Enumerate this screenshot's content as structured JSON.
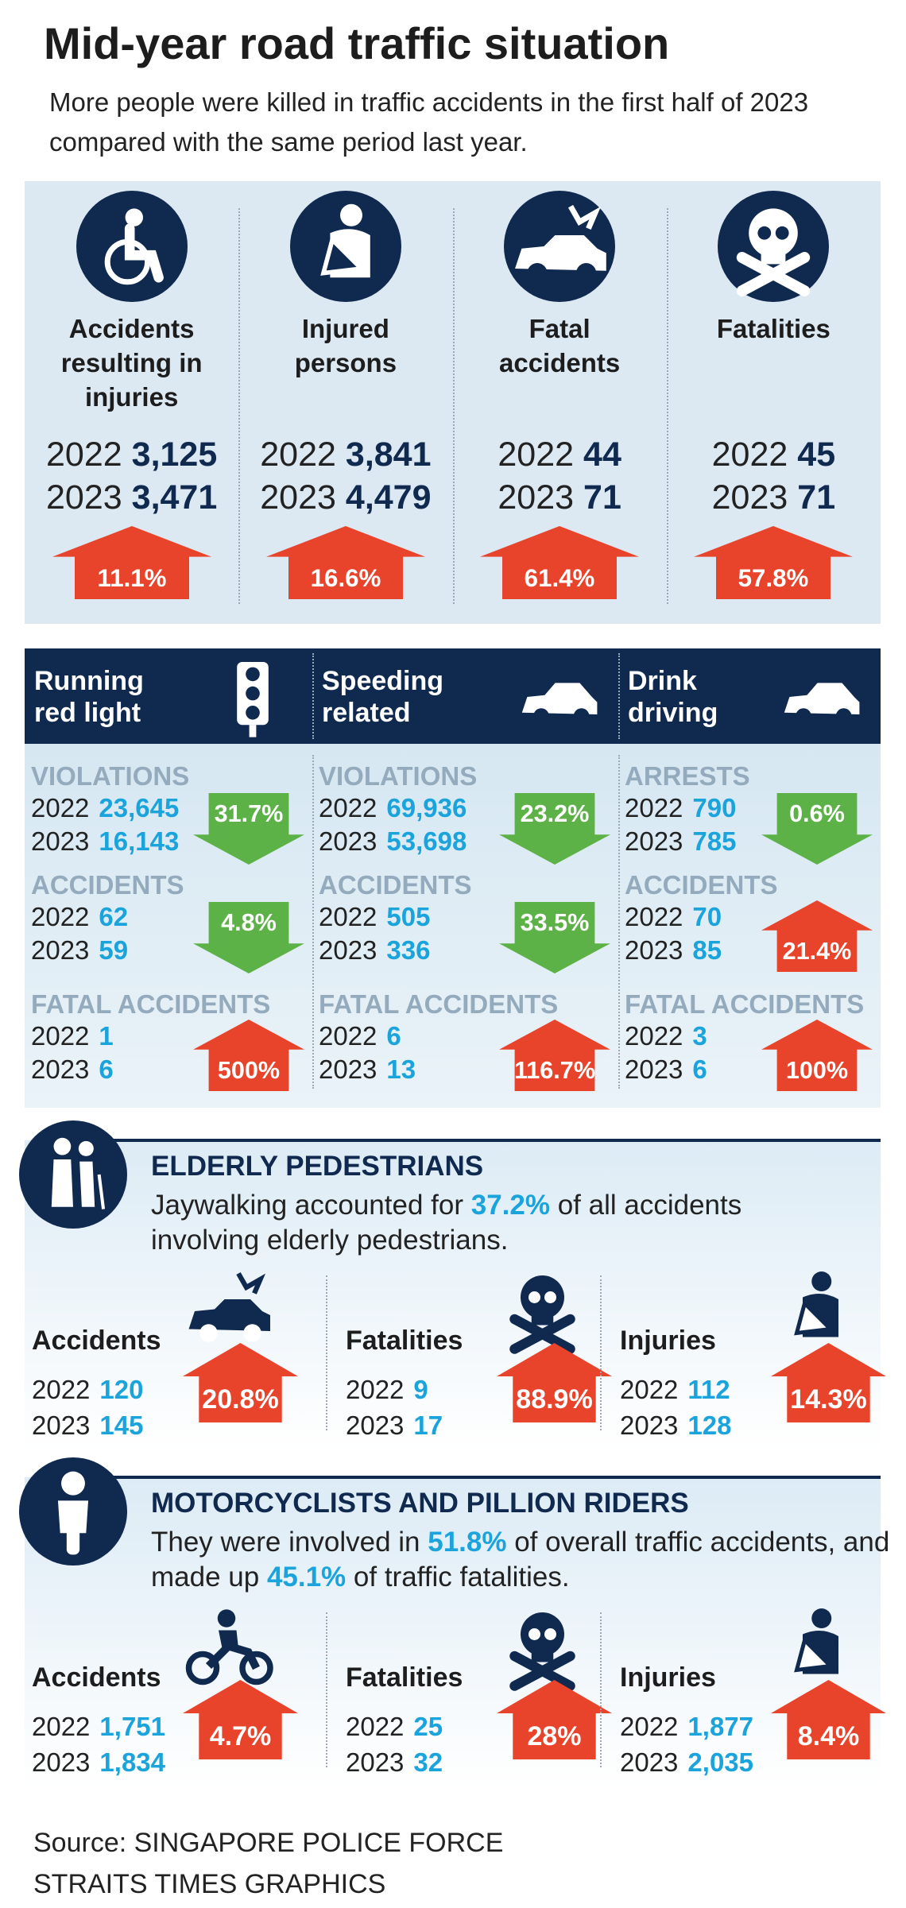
{
  "header": {
    "title": "Mid-year road traffic situation",
    "subtitle": "More people were killed in traffic accidents in the first half of 2023 compared with the same period last year."
  },
  "summary": [
    {
      "label": [
        "Accidents",
        "resulting in",
        "injuries"
      ],
      "rows": [
        {
          "year": "2022",
          "value": "3,125"
        },
        {
          "year": "2023",
          "value": "3,471"
        }
      ],
      "change": "11.1%",
      "trend": "up"
    },
    {
      "label": [
        "Injured",
        "persons"
      ],
      "rows": [
        {
          "year": "2022",
          "value": "3,841"
        },
        {
          "year": "2023",
          "value": "4,479"
        }
      ],
      "change": "16.6%",
      "trend": "up"
    },
    {
      "label": [
        "Fatal",
        "accidents"
      ],
      "rows": [
        {
          "year": "2022",
          "value": "44"
        },
        {
          "year": "2023",
          "value": "71"
        }
      ],
      "change": "61.4%",
      "trend": "up"
    },
    {
      "label": [
        "Fatalities"
      ],
      "rows": [
        {
          "year": "2022",
          "value": "45"
        },
        {
          "year": "2023",
          "value": "71"
        }
      ],
      "change": "57.8%",
      "trend": "up"
    }
  ],
  "offences": [
    {
      "title": [
        "Running",
        "red light"
      ],
      "blocks": [
        {
          "label": "VIOLATIONS",
          "rows": [
            {
              "year": "2022",
              "value": "23,645"
            },
            {
              "year": "2023",
              "value": "16,143"
            }
          ],
          "change": "31.7%",
          "trend": "down"
        },
        {
          "label": "ACCIDENTS",
          "rows": [
            {
              "year": "2022",
              "value": "62"
            },
            {
              "year": "2023",
              "value": "59"
            }
          ],
          "change": "4.8%",
          "trend": "down"
        },
        {
          "label": "FATAL ACCIDENTS",
          "rows": [
            {
              "year": "2022",
              "value": "1"
            },
            {
              "year": "2023",
              "value": "6"
            }
          ],
          "change": "500%",
          "trend": "up"
        }
      ]
    },
    {
      "title": [
        "Speeding",
        "related"
      ],
      "blocks": [
        {
          "label": "VIOLATIONS",
          "rows": [
            {
              "year": "2022",
              "value": "69,936"
            },
            {
              "year": "2023",
              "value": "53,698"
            }
          ],
          "change": "23.2%",
          "trend": "down"
        },
        {
          "label": "ACCIDENTS",
          "rows": [
            {
              "year": "2022",
              "value": "505"
            },
            {
              "year": "2023",
              "value": "336"
            }
          ],
          "change": "33.5%",
          "trend": "down"
        },
        {
          "label": "FATAL ACCIDENTS",
          "rows": [
            {
              "year": "2022",
              "value": "6"
            },
            {
              "year": "2023",
              "value": "13"
            }
          ],
          "change": "116.7%",
          "trend": "up"
        }
      ]
    },
    {
      "title": [
        "Drink",
        "driving"
      ],
      "blocks": [
        {
          "label": "ARRESTS",
          "rows": [
            {
              "year": "2022",
              "value": "790"
            },
            {
              "year": "2023",
              "value": "785"
            }
          ],
          "change": "0.6%",
          "trend": "down"
        },
        {
          "label": "ACCIDENTS",
          "rows": [
            {
              "year": "2022",
              "value": "70"
            },
            {
              "year": "2023",
              "value": "85"
            }
          ],
          "change": "21.4%",
          "trend": "up"
        },
        {
          "label": "FATAL ACCIDENTS",
          "rows": [
            {
              "year": "2022",
              "value": "3"
            },
            {
              "year": "2023",
              "value": "6"
            }
          ],
          "change": "100%",
          "trend": "up"
        }
      ]
    }
  ],
  "groups": [
    {
      "title": "ELDERLY PEDESTRIANS",
      "text": [
        "Jaywalking accounted for ",
        "37.2%",
        " of all accidents involving elderly pedestrians."
      ],
      "items": [
        {
          "label": "Accidents",
          "rows": [
            {
              "year": "2022",
              "value": "120"
            },
            {
              "year": "2023",
              "value": "145"
            }
          ],
          "change": "20.8%",
          "trend": "up"
        },
        {
          "label": "Fatalities",
          "rows": [
            {
              "year": "2022",
              "value": "9"
            },
            {
              "year": "2023",
              "value": "17"
            }
          ],
          "change": "88.9%",
          "trend": "up"
        },
        {
          "label": "Injuries",
          "rows": [
            {
              "year": "2022",
              "value": "112"
            },
            {
              "year": "2023",
              "value": "128"
            }
          ],
          "change": "14.3%",
          "trend": "up"
        }
      ]
    },
    {
      "title": "MOTORCYCLISTS AND PILLION RIDERS",
      "text": [
        "They were involved in ",
        "51.8%",
        " of overall traffic accidents, and made up ",
        "45.1%",
        " of traffic fatalities."
      ],
      "items": [
        {
          "label": "Accidents",
          "rows": [
            {
              "year": "2022",
              "value": "1,751"
            },
            {
              "year": "2023",
              "value": "1,834"
            }
          ],
          "change": "4.7%",
          "trend": "up"
        },
        {
          "label": "Fatalities",
          "rows": [
            {
              "year": "2022",
              "value": "25"
            },
            {
              "year": "2023",
              "value": "32"
            }
          ],
          "change": "28%",
          "trend": "up"
        },
        {
          "label": "Injuries",
          "rows": [
            {
              "year": "2022",
              "value": "1,877"
            },
            {
              "year": "2023",
              "value": "2,035"
            }
          ],
          "change": "8.4%",
          "trend": "up"
        }
      ]
    }
  ],
  "footer": [
    "Source: SINGAPORE POLICE FORCE",
    "STRAITS TIMES GRAPHICS"
  ]
}
